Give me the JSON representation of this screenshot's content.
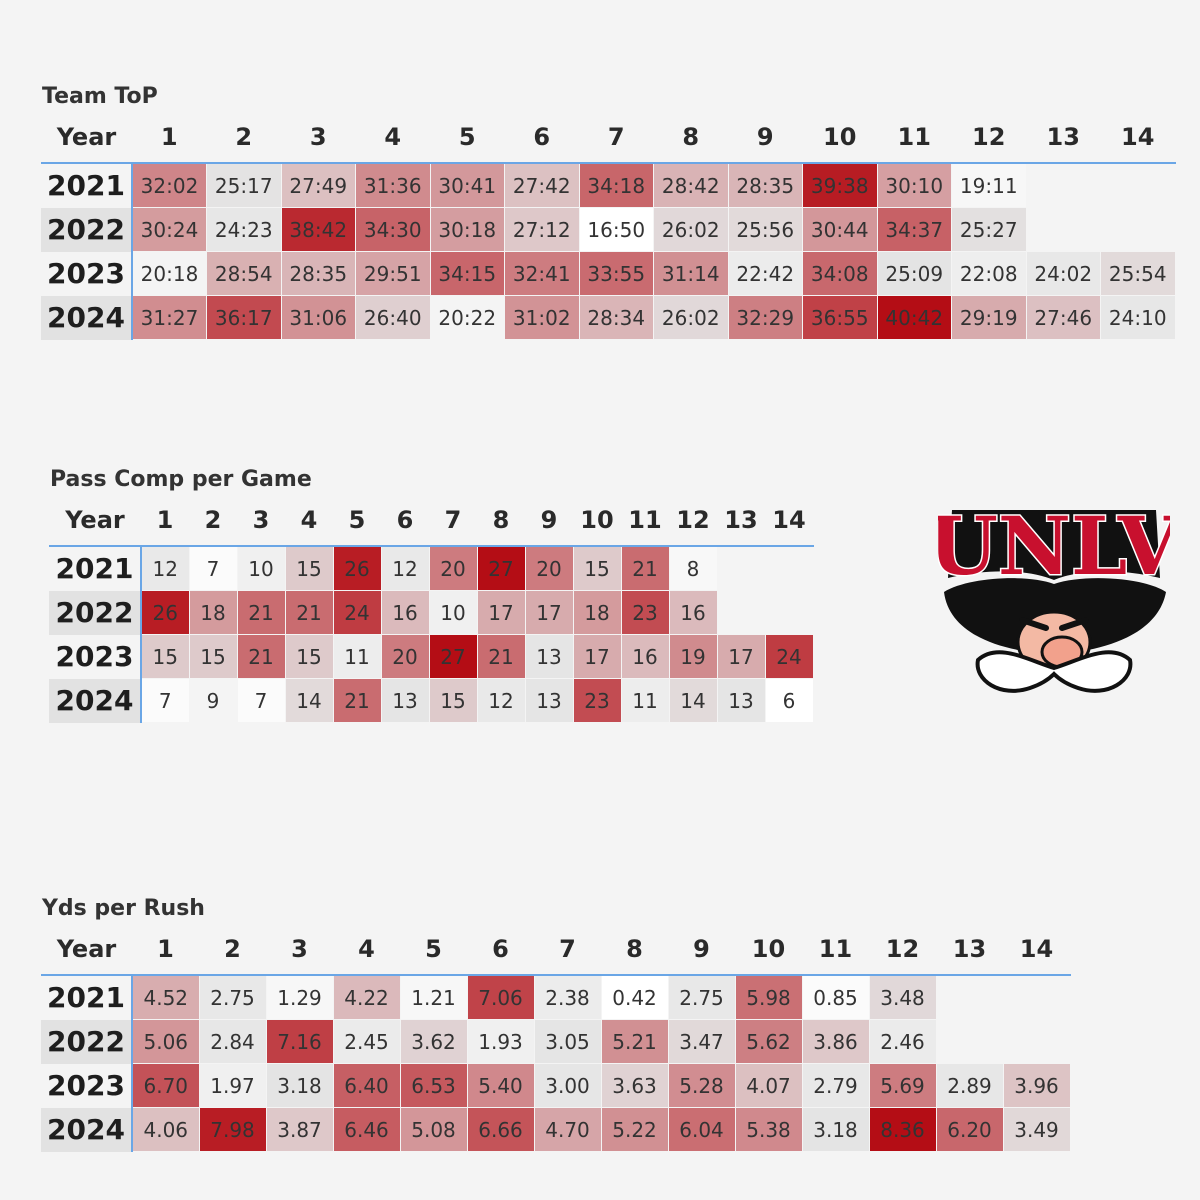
{
  "colors": {
    "accent": "#6aa6e6",
    "heat_low": "#ffffff",
    "heat_mid": "#e4e4e4",
    "heat_high": "#b40d15",
    "background": "#f4f4f4"
  },
  "logo": {
    "text": "UNLV",
    "icon": "unlv-rebel-mascot-logo"
  },
  "chart_data": [
    {
      "type": "heatmap",
      "title": "Team ToP",
      "row_header": "Year",
      "columns": [
        "1",
        "2",
        "3",
        "4",
        "5",
        "6",
        "7",
        "8",
        "9",
        "10",
        "11",
        "12",
        "13",
        "14"
      ],
      "rows": [
        {
          "year": "2021",
          "values": [
            "32:02",
            "25:17",
            "27:49",
            "31:36",
            "30:41",
            "27:42",
            "34:18",
            "28:42",
            "28:35",
            "39:38",
            "30:10",
            "19:11",
            "",
            ""
          ]
        },
        {
          "year": "2022",
          "values": [
            "30:24",
            "24:23",
            "38:42",
            "34:30",
            "30:18",
            "27:12",
            "16:50",
            "26:02",
            "25:56",
            "30:44",
            "34:37",
            "25:27",
            "",
            ""
          ]
        },
        {
          "year": "2023",
          "values": [
            "20:18",
            "28:54",
            "28:35",
            "29:51",
            "34:15",
            "32:41",
            "33:55",
            "31:14",
            "22:42",
            "34:08",
            "25:09",
            "22:08",
            "24:02",
            "25:54"
          ]
        },
        {
          "year": "2024",
          "values": [
            "31:27",
            "36:17",
            "31:06",
            "26:40",
            "20:22",
            "31:02",
            "28:34",
            "26:02",
            "32:29",
            "36:55",
            "40:42",
            "29:19",
            "27:46",
            "24:10"
          ]
        }
      ]
    },
    {
      "type": "heatmap",
      "title": "Pass Comp per Game",
      "row_header": "Year",
      "columns": [
        "1",
        "2",
        "3",
        "4",
        "5",
        "6",
        "7",
        "8",
        "9",
        "10",
        "11",
        "12",
        "13",
        "14"
      ],
      "rows": [
        {
          "year": "2021",
          "values": [
            "12",
            "7",
            "10",
            "15",
            "26",
            "12",
            "20",
            "27",
            "20",
            "15",
            "21",
            "8",
            "",
            ""
          ]
        },
        {
          "year": "2022",
          "values": [
            "26",
            "18",
            "21",
            "21",
            "24",
            "16",
            "10",
            "17",
            "17",
            "18",
            "23",
            "16",
            "",
            ""
          ]
        },
        {
          "year": "2023",
          "values": [
            "15",
            "15",
            "21",
            "15",
            "11",
            "20",
            "27",
            "21",
            "13",
            "17",
            "16",
            "19",
            "17",
            "24"
          ]
        },
        {
          "year": "2024",
          "values": [
            "7",
            "9",
            "7",
            "14",
            "21",
            "13",
            "15",
            "12",
            "13",
            "23",
            "11",
            "14",
            "13",
            "6"
          ]
        }
      ]
    },
    {
      "type": "heatmap",
      "title": "Yds per Rush",
      "row_header": "Year",
      "columns": [
        "1",
        "2",
        "3",
        "4",
        "5",
        "6",
        "7",
        "8",
        "9",
        "10",
        "11",
        "12",
        "13",
        "14"
      ],
      "rows": [
        {
          "year": "2021",
          "values": [
            "4.52",
            "2.75",
            "1.29",
            "4.22",
            "1.21",
            "7.06",
            "2.38",
            "0.42",
            "2.75",
            "5.98",
            "0.85",
            "3.48",
            "",
            ""
          ]
        },
        {
          "year": "2022",
          "values": [
            "5.06",
            "2.84",
            "7.16",
            "2.45",
            "3.62",
            "1.93",
            "3.05",
            "5.21",
            "3.47",
            "5.62",
            "3.86",
            "2.46",
            "",
            ""
          ]
        },
        {
          "year": "2023",
          "values": [
            "6.70",
            "1.97",
            "3.18",
            "6.40",
            "6.53",
            "5.40",
            "3.00",
            "3.63",
            "5.28",
            "4.07",
            "2.79",
            "5.69",
            "2.89",
            "3.96"
          ]
        },
        {
          "year": "2024",
          "values": [
            "4.06",
            "7.98",
            "3.87",
            "6.46",
            "5.08",
            "6.66",
            "4.70",
            "5.22",
            "6.04",
            "5.38",
            "3.18",
            "8.36",
            "6.20",
            "3.49"
          ]
        }
      ]
    }
  ]
}
